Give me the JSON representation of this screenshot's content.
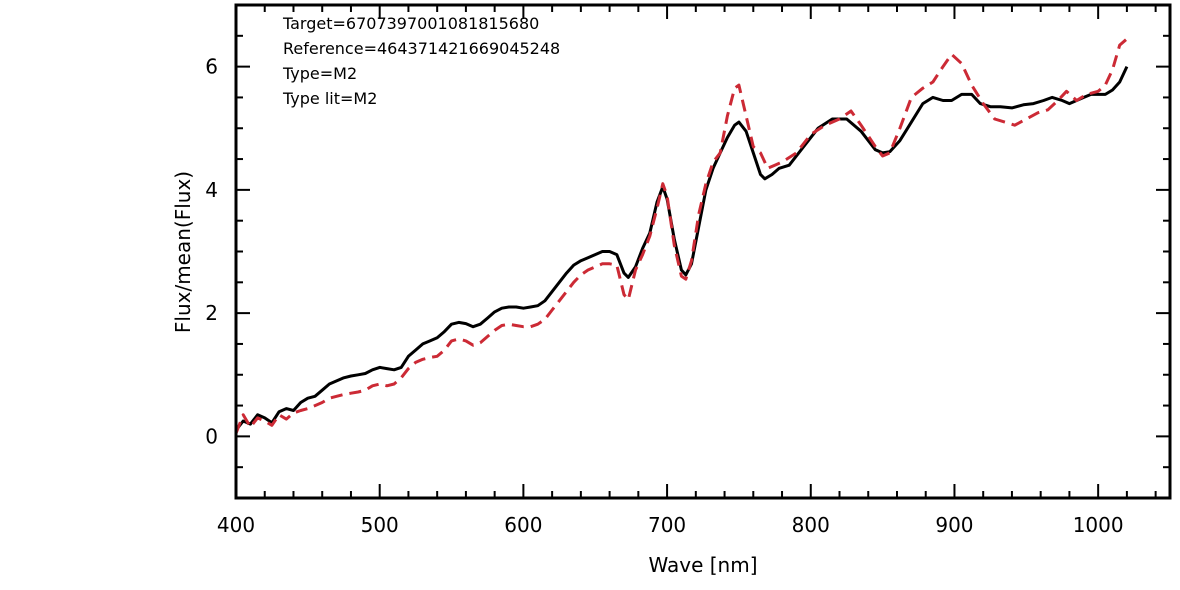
{
  "chart_data": {
    "type": "line",
    "xlabel": "Wave [nm]",
    "ylabel": "Flux/mean(Flux)",
    "xlim": [
      400,
      1050
    ],
    "ylim": [
      -1,
      7
    ],
    "xticks": [
      400,
      500,
      600,
      700,
      800,
      900,
      1000
    ],
    "yticks": [
      0,
      2,
      4,
      6
    ],
    "grid": false,
    "annotations": [
      "Target=6707397001081815680",
      "Reference=4643714216690452​48",
      "Type=M2",
      "Type lit=M2"
    ],
    "series": [
      {
        "style": "solid",
        "color": "#000000",
        "points": [
          [
            400,
            0.1
          ],
          [
            405,
            0.25
          ],
          [
            410,
            0.2
          ],
          [
            415,
            0.35
          ],
          [
            420,
            0.3
          ],
          [
            425,
            0.22
          ],
          [
            430,
            0.4
          ],
          [
            435,
            0.45
          ],
          [
            440,
            0.42
          ],
          [
            445,
            0.55
          ],
          [
            450,
            0.62
          ],
          [
            455,
            0.65
          ],
          [
            460,
            0.75
          ],
          [
            465,
            0.85
          ],
          [
            470,
            0.9
          ],
          [
            475,
            0.95
          ],
          [
            480,
            0.98
          ],
          [
            485,
            1.0
          ],
          [
            490,
            1.02
          ],
          [
            495,
            1.08
          ],
          [
            500,
            1.12
          ],
          [
            505,
            1.1
          ],
          [
            510,
            1.08
          ],
          [
            515,
            1.12
          ],
          [
            520,
            1.3
          ],
          [
            525,
            1.4
          ],
          [
            530,
            1.5
          ],
          [
            535,
            1.55
          ],
          [
            540,
            1.6
          ],
          [
            545,
            1.7
          ],
          [
            550,
            1.82
          ],
          [
            555,
            1.85
          ],
          [
            560,
            1.83
          ],
          [
            565,
            1.78
          ],
          [
            570,
            1.82
          ],
          [
            575,
            1.92
          ],
          [
            580,
            2.02
          ],
          [
            585,
            2.08
          ],
          [
            590,
            2.1
          ],
          [
            595,
            2.1
          ],
          [
            600,
            2.08
          ],
          [
            605,
            2.1
          ],
          [
            610,
            2.12
          ],
          [
            615,
            2.2
          ],
          [
            620,
            2.35
          ],
          [
            625,
            2.5
          ],
          [
            630,
            2.65
          ],
          [
            635,
            2.78
          ],
          [
            640,
            2.85
          ],
          [
            645,
            2.9
          ],
          [
            650,
            2.95
          ],
          [
            655,
            3.0
          ],
          [
            660,
            3.0
          ],
          [
            665,
            2.95
          ],
          [
            670,
            2.65
          ],
          [
            673,
            2.58
          ],
          [
            678,
            2.75
          ],
          [
            683,
            3.05
          ],
          [
            688,
            3.3
          ],
          [
            693,
            3.8
          ],
          [
            697,
            4.05
          ],
          [
            700,
            3.85
          ],
          [
            705,
            3.2
          ],
          [
            710,
            2.7
          ],
          [
            713,
            2.62
          ],
          [
            717,
            2.8
          ],
          [
            722,
            3.4
          ],
          [
            727,
            4.0
          ],
          [
            732,
            4.35
          ],
          [
            737,
            4.6
          ],
          [
            742,
            4.85
          ],
          [
            747,
            5.05
          ],
          [
            750,
            5.1
          ],
          [
            755,
            4.95
          ],
          [
            760,
            4.6
          ],
          [
            765,
            4.25
          ],
          [
            768,
            4.18
          ],
          [
            773,
            4.25
          ],
          [
            778,
            4.35
          ],
          [
            785,
            4.4
          ],
          [
            795,
            4.7
          ],
          [
            805,
            5.0
          ],
          [
            815,
            5.15
          ],
          [
            825,
            5.15
          ],
          [
            835,
            4.95
          ],
          [
            845,
            4.65
          ],
          [
            850,
            4.6
          ],
          [
            855,
            4.62
          ],
          [
            862,
            4.8
          ],
          [
            870,
            5.1
          ],
          [
            878,
            5.4
          ],
          [
            885,
            5.5
          ],
          [
            892,
            5.45
          ],
          [
            898,
            5.45
          ],
          [
            905,
            5.55
          ],
          [
            912,
            5.55
          ],
          [
            918,
            5.4
          ],
          [
            925,
            5.35
          ],
          [
            932,
            5.35
          ],
          [
            940,
            5.33
          ],
          [
            948,
            5.38
          ],
          [
            955,
            5.4
          ],
          [
            962,
            5.45
          ],
          [
            968,
            5.5
          ],
          [
            975,
            5.45
          ],
          [
            980,
            5.4
          ],
          [
            985,
            5.45
          ],
          [
            990,
            5.5
          ],
          [
            995,
            5.55
          ],
          [
            1000,
            5.55
          ],
          [
            1005,
            5.55
          ],
          [
            1010,
            5.62
          ],
          [
            1015,
            5.75
          ],
          [
            1020,
            6.0
          ]
        ]
      },
      {
        "style": "dashed",
        "color": "#cc2a35",
        "points": [
          [
            400,
            0.05
          ],
          [
            405,
            0.35
          ],
          [
            410,
            0.15
          ],
          [
            415,
            0.3
          ],
          [
            420,
            0.25
          ],
          [
            425,
            0.18
          ],
          [
            430,
            0.35
          ],
          [
            435,
            0.28
          ],
          [
            440,
            0.38
          ],
          [
            445,
            0.42
          ],
          [
            450,
            0.45
          ],
          [
            455,
            0.5
          ],
          [
            460,
            0.55
          ],
          [
            465,
            0.62
          ],
          [
            470,
            0.65
          ],
          [
            475,
            0.68
          ],
          [
            480,
            0.7
          ],
          [
            485,
            0.72
          ],
          [
            490,
            0.75
          ],
          [
            495,
            0.82
          ],
          [
            500,
            0.85
          ],
          [
            505,
            0.82
          ],
          [
            510,
            0.85
          ],
          [
            515,
            0.95
          ],
          [
            520,
            1.1
          ],
          [
            525,
            1.2
          ],
          [
            530,
            1.25
          ],
          [
            535,
            1.28
          ],
          [
            540,
            1.3
          ],
          [
            545,
            1.4
          ],
          [
            550,
            1.55
          ],
          [
            555,
            1.58
          ],
          [
            560,
            1.55
          ],
          [
            565,
            1.48
          ],
          [
            570,
            1.52
          ],
          [
            575,
            1.62
          ],
          [
            580,
            1.72
          ],
          [
            585,
            1.8
          ],
          [
            590,
            1.82
          ],
          [
            595,
            1.8
          ],
          [
            600,
            1.78
          ],
          [
            605,
            1.78
          ],
          [
            610,
            1.82
          ],
          [
            615,
            1.9
          ],
          [
            620,
            2.05
          ],
          [
            625,
            2.2
          ],
          [
            630,
            2.35
          ],
          [
            635,
            2.5
          ],
          [
            640,
            2.62
          ],
          [
            645,
            2.7
          ],
          [
            650,
            2.75
          ],
          [
            655,
            2.8
          ],
          [
            660,
            2.8
          ],
          [
            665,
            2.78
          ],
          [
            670,
            2.3
          ],
          [
            673,
            2.22
          ],
          [
            678,
            2.7
          ],
          [
            683,
            2.95
          ],
          [
            688,
            3.25
          ],
          [
            693,
            3.7
          ],
          [
            697,
            4.1
          ],
          [
            700,
            3.9
          ],
          [
            705,
            3.1
          ],
          [
            710,
            2.6
          ],
          [
            713,
            2.55
          ],
          [
            717,
            2.85
          ],
          [
            722,
            3.6
          ],
          [
            727,
            4.1
          ],
          [
            732,
            4.45
          ],
          [
            737,
            4.6
          ],
          [
            742,
            5.2
          ],
          [
            747,
            5.65
          ],
          [
            750,
            5.7
          ],
          [
            755,
            5.2
          ],
          [
            760,
            4.7
          ],
          [
            765,
            4.6
          ],
          [
            770,
            4.35
          ],
          [
            775,
            4.4
          ],
          [
            780,
            4.45
          ],
          [
            790,
            4.6
          ],
          [
            800,
            4.9
          ],
          [
            810,
            5.05
          ],
          [
            820,
            5.15
          ],
          [
            828,
            5.28
          ],
          [
            835,
            5.05
          ],
          [
            845,
            4.7
          ],
          [
            850,
            4.55
          ],
          [
            855,
            4.6
          ],
          [
            862,
            5.0
          ],
          [
            870,
            5.5
          ],
          [
            878,
            5.65
          ],
          [
            885,
            5.75
          ],
          [
            892,
            6.0
          ],
          [
            898,
            6.2
          ],
          [
            905,
            6.05
          ],
          [
            912,
            5.7
          ],
          [
            920,
            5.4
          ],
          [
            928,
            5.15
          ],
          [
            935,
            5.1
          ],
          [
            942,
            5.05
          ],
          [
            950,
            5.15
          ],
          [
            958,
            5.25
          ],
          [
            965,
            5.3
          ],
          [
            972,
            5.45
          ],
          [
            978,
            5.6
          ],
          [
            985,
            5.45
          ],
          [
            992,
            5.55
          ],
          [
            1000,
            5.6
          ],
          [
            1005,
            5.7
          ],
          [
            1010,
            5.95
          ],
          [
            1015,
            6.35
          ],
          [
            1020,
            6.45
          ]
        ]
      }
    ]
  }
}
